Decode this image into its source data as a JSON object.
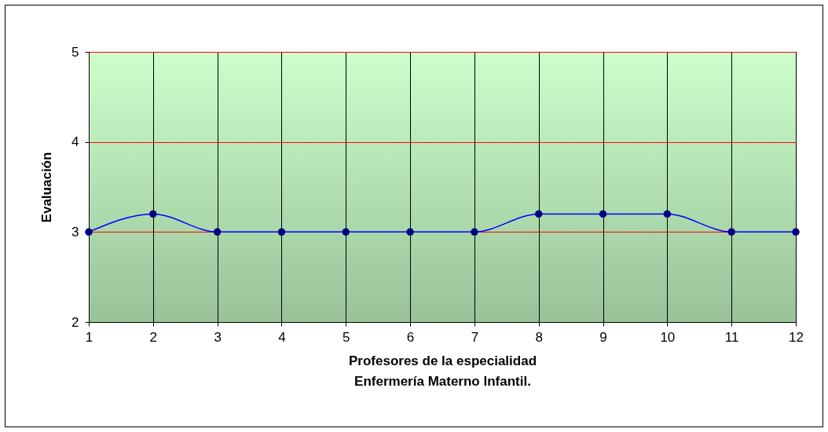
{
  "chart_data": {
    "type": "line",
    "xlabel": "Profesores de la especialidad\nEnfermería Materno Infantil.",
    "ylabel": "Evaluación",
    "x": [
      1,
      2,
      3,
      4,
      5,
      6,
      7,
      8,
      9,
      10,
      11,
      12
    ],
    "series": [
      {
        "color": "#0000ff",
        "values": [
          3,
          3.2,
          3,
          3,
          3,
          3,
          3,
          3.2,
          3.2,
          3.2,
          3,
          3
        ]
      }
    ],
    "xlim": [
      1,
      12
    ],
    "xticks": [
      1,
      2,
      3,
      4,
      5,
      6,
      7,
      8,
      9,
      10,
      11,
      12
    ],
    "ylim": [
      2,
      5
    ],
    "yticks": [
      2,
      3,
      4,
      5
    ],
    "grid": true,
    "marker": "circle",
    "line_style": "solid",
    "legend": false
  }
}
